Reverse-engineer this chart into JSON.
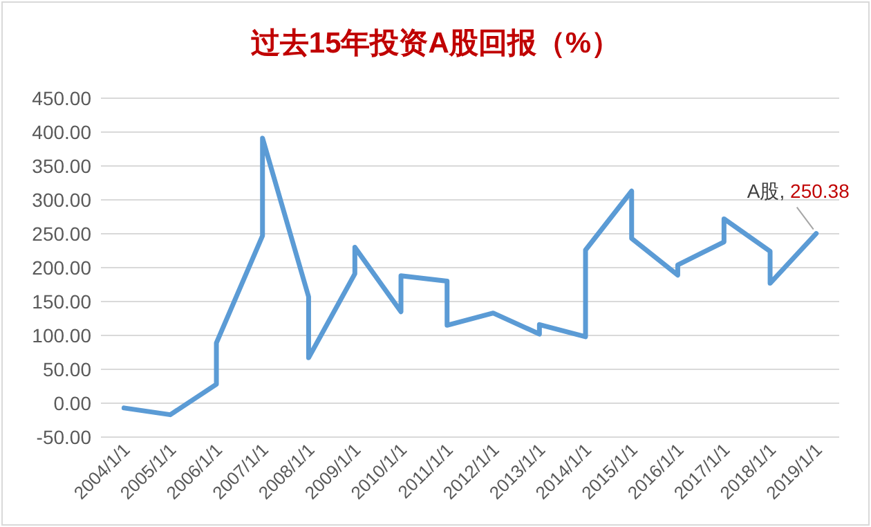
{
  "chart_data": {
    "type": "line",
    "title": "过去15年投资A股回报（%）",
    "x": [
      "2004-01-01",
      "2005-01-01",
      "2006-01-01",
      "2006-01-01",
      "2007-01-01",
      "2007-01-01",
      "2008-01-01",
      "2008-01-01",
      "2009-01-01",
      "2009-01-01",
      "2010-01-01",
      "2010-01-01",
      "2011-01-01",
      "2011-01-01",
      "2012-01-01",
      "2013-01-01",
      "2013-01-01",
      "2014-01-01",
      "2014-01-01",
      "2015-01-01",
      "2015-01-01",
      "2016-01-01",
      "2016-01-01",
      "2017-01-01",
      "2017-01-01",
      "2018-01-01",
      "2018-01-01",
      "2019-01-01"
    ],
    "series": [
      {
        "name": "A股,",
        "color": "#5b9bd5",
        "values": [
          -7,
          -17,
          28,
          89,
          247,
          391,
          157,
          67,
          191,
          230,
          135,
          188,
          180,
          115,
          133,
          102,
          116,
          98,
          226,
          313,
          243,
          189,
          204,
          238,
          272,
          224,
          177,
          250.38
        ],
        "value_labels": [
          null,
          null,
          null,
          null,
          null,
          null,
          null,
          null,
          null,
          null,
          null,
          null,
          null,
          null,
          null,
          null,
          null,
          null,
          null,
          null,
          null,
          null,
          null,
          null,
          null,
          null,
          null,
          "250.38"
        ]
      }
    ],
    "xlim": [
      "2003-07-02",
      "2019-07-02"
    ],
    "xticks": [
      {
        "value": "2004-01-01",
        "label": "2004/1/1"
      },
      {
        "value": "2005-01-01",
        "label": "2005/1/1"
      },
      {
        "value": "2006-01-01",
        "label": "2006/1/1"
      },
      {
        "value": "2007-01-01",
        "label": "2007/1/1"
      },
      {
        "value": "2008-01-01",
        "label": "2008/1/1"
      },
      {
        "value": "2009-01-01",
        "label": "2009/1/1"
      },
      {
        "value": "2010-01-01",
        "label": "2010/1/1"
      },
      {
        "value": "2011-01-01",
        "label": "2011/1/1"
      },
      {
        "value": "2012-01-01",
        "label": "2012/1/1"
      },
      {
        "value": "2013-01-01",
        "label": "2013/1/1"
      },
      {
        "value": "2014-01-01",
        "label": "2014/1/1"
      },
      {
        "value": "2015-01-01",
        "label": "2015/1/1"
      },
      {
        "value": "2016-01-01",
        "label": "2016/1/1"
      },
      {
        "value": "2017-01-01",
        "label": "2017/1/1"
      },
      {
        "value": "2018-01-01",
        "label": "2018/1/1"
      },
      {
        "value": "2019-01-01",
        "label": "2019/1/1"
      }
    ],
    "ylim": [
      -50,
      450
    ],
    "yticks": [
      {
        "value": -50,
        "label": "-50.00"
      },
      {
        "value": 0,
        "label": "0.00"
      },
      {
        "value": 50,
        "label": "50.00"
      },
      {
        "value": 100,
        "label": "100.00"
      },
      {
        "value": 150,
        "label": "150.00"
      },
      {
        "value": 200,
        "label": "200.00"
      },
      {
        "value": 250,
        "label": "250.00"
      },
      {
        "value": 300,
        "label": "300.00"
      },
      {
        "value": 350,
        "label": "350.00"
      },
      {
        "value": 400,
        "label": "400.00"
      },
      {
        "value": 450,
        "label": "450.00"
      }
    ],
    "grid": "y",
    "legend": false,
    "marker": "none",
    "line_style": "solid"
  }
}
